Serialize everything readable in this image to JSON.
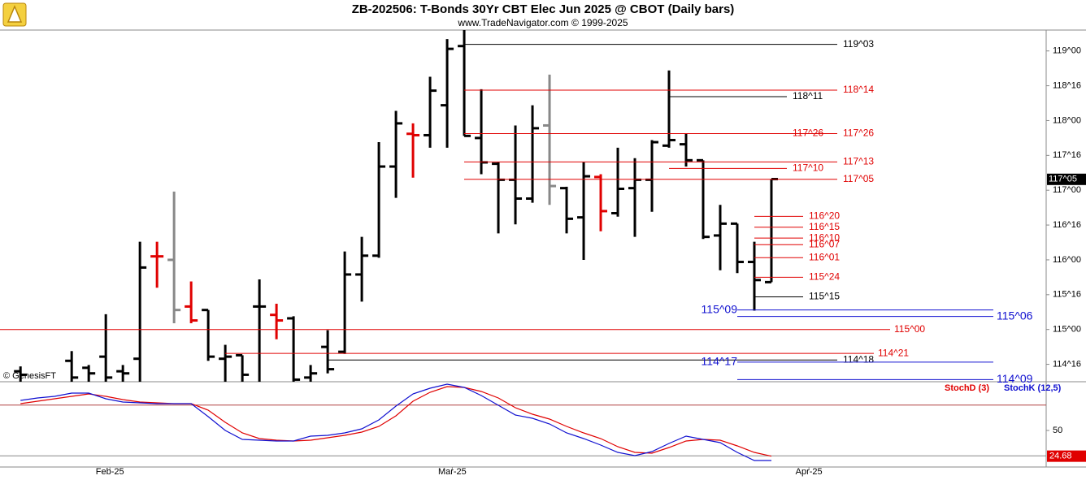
{
  "header": {
    "title": "ZB-202506:  T-Bonds 30Yr CBT Elec Jun 2025 @ CBOT  (Daily bars)",
    "subtitle": "www.TradeNavigator.com © 1999-2025",
    "credit": "© GenesisFT"
  },
  "chart_data": [
    {
      "type": "ohlc",
      "categories": [
        null,
        null,
        null,
        null,
        null,
        null,
        null,
        null,
        null,
        null,
        null,
        null,
        null,
        null,
        null,
        null,
        null,
        null,
        null,
        null,
        null,
        null,
        null,
        null,
        null,
        null,
        null,
        null,
        null,
        null,
        null,
        null,
        null,
        null,
        null,
        null,
        null,
        null,
        null,
        null,
        null,
        null,
        null,
        null,
        null
      ],
      "open": [
        114.4,
        null,
        null,
        114.55,
        114.45,
        114.61,
        114.4,
        114.58,
        116.05,
        116.0,
        115.33,
        115.28,
        114.58,
        114.63,
        115.33,
        115.21,
        115.16,
        114.31,
        114.75,
        114.68,
        115.79,
        116.06,
        117.34,
        117.81,
        117.79,
        118.22,
        119.07,
        117.75,
        117.38,
        117.15,
        116.88,
        117.93,
        117.03,
        116.61,
        117.19,
        116.67,
        117.03,
        117.15,
        117.64,
        117.66,
        117.43,
        116.35,
        116.52,
        115.97,
        115.68
      ],
      "high": [
        114.47,
        null,
        null,
        114.69,
        114.49,
        115.22,
        114.49,
        116.26,
        116.26,
        116.98,
        115.69,
        115.28,
        114.78,
        114.63,
        115.72,
        115.37,
        115.19,
        114.49,
        114.99,
        116.12,
        116.33,
        117.69,
        118.14,
        117.96,
        118.63,
        119.17,
        119.3,
        118.45,
        117.4,
        117.93,
        118.22,
        118.66,
        117.05,
        117.4,
        117.23,
        117.61,
        117.46,
        117.72,
        118.72,
        117.81,
        117.43,
        116.79,
        116.52,
        116.26,
        117.16
      ],
      "low": [
        114.25,
        null,
        null,
        114.25,
        114.25,
        114.25,
        114.25,
        114.25,
        115.6,
        115.09,
        115.09,
        114.55,
        114.25,
        114.25,
        114.25,
        114.86,
        114.25,
        114.25,
        114.37,
        114.65,
        115.4,
        116.03,
        116.89,
        117.18,
        117.61,
        117.61,
        117.78,
        117.23,
        116.38,
        116.51,
        116.82,
        116.79,
        116.38,
        116.0,
        116.41,
        116.62,
        116.33,
        116.69,
        117.61,
        117.34,
        116.3,
        115.85,
        115.81,
        115.27,
        115.68
      ],
      "close": [
        114.35,
        null,
        null,
        114.31,
        114.37,
        114.31,
        114.37,
        115.89,
        116.05,
        115.28,
        115.13,
        114.61,
        114.61,
        114.35,
        115.33,
        115.13,
        114.28,
        114.37,
        114.43,
        115.79,
        116.06,
        117.34,
        117.96,
        117.79,
        118.43,
        119.03,
        117.78,
        117.4,
        117.15,
        116.88,
        117.89,
        117.06,
        116.59,
        117.2,
        116.7,
        117.02,
        117.15,
        117.69,
        117.72,
        117.43,
        116.33,
        116.52,
        115.97,
        115.71,
        117.16
      ],
      "colors": [
        "#000000",
        null,
        null,
        "#000000",
        "#000000",
        "#000000",
        "#000000",
        "#000000",
        "#e00000",
        "#888888",
        "#e00000",
        "#000000",
        "#000000",
        "#000000",
        "#000000",
        "#e00000",
        "#000000",
        "#000000",
        "#000000",
        "#000000",
        "#000000",
        "#000000",
        "#000000",
        "#e00000",
        "#000000",
        "#000000",
        "#000000",
        "#000000",
        "#000000",
        "#000000",
        "#000000",
        "#888888",
        "#000000",
        "#000000",
        "#e00000",
        "#000000",
        "#000000",
        "#000000",
        "#000000",
        "#000000",
        "#000000",
        "#000000",
        "#000000",
        "#000000",
        "#000000"
      ],
      "xlim": [
        -1.2,
        60.1
      ],
      "ylim": [
        114.25,
        119.3
      ],
      "yticks": [
        {
          "value": 119,
          "label": "119^00"
        },
        {
          "value": 118.5,
          "label": "118^16"
        },
        {
          "value": 118,
          "label": "118^00"
        },
        {
          "value": 117.5,
          "label": "117^16"
        },
        {
          "value": 117,
          "label": "117^00"
        },
        {
          "value": 116.5,
          "label": "116^16"
        },
        {
          "value": 116,
          "label": "116^00"
        },
        {
          "value": 115.5,
          "label": "115^16"
        },
        {
          "value": 115,
          "label": "115^00"
        },
        {
          "value": 114.5,
          "label": "114^16"
        }
      ],
      "levels": [
        {
          "value": 119.09375,
          "label": "119^03",
          "color": "#000000"
        },
        {
          "value": 118.4375,
          "label": "118^14",
          "color": "#e00000"
        },
        {
          "value": 118.34375,
          "label": "118^11",
          "color": "#000000"
        },
        {
          "value": 117.8125,
          "label": "117^26",
          "color": "#e00000"
        },
        {
          "value": 117.8125,
          "label": "117^26",
          "color": "#e00000"
        },
        {
          "value": 117.40625,
          "label": "117^13",
          "color": "#e00000"
        },
        {
          "value": 117.3125,
          "label": "117^10",
          "color": "#e00000"
        },
        {
          "value": 117.15625,
          "label": "117^05",
          "color": "#e00000"
        },
        {
          "value": 116.625,
          "label": "116^20",
          "color": "#e00000"
        },
        {
          "value": 116.46875,
          "label": "116^15",
          "color": "#e00000"
        },
        {
          "value": 116.3125,
          "label": "116^10",
          "color": "#e00000"
        },
        {
          "value": 116.21875,
          "label": "116^07",
          "color": "#e00000"
        },
        {
          "value": 116.03125,
          "label": "116^01",
          "color": "#e00000"
        },
        {
          "value": 115.75,
          "label": "115^24",
          "color": "#e00000"
        },
        {
          "value": 115.46875,
          "label": "115^15",
          "color": "#000000"
        },
        {
          "value": 115.28125,
          "label": "115^09",
          "color": "#1010d0"
        },
        {
          "value": 115.1875,
          "label": "115^06",
          "color": "#1010d0"
        },
        {
          "value": 115.0,
          "label": "115^00",
          "color": "#e00000"
        },
        {
          "value": 114.65625,
          "label": "114^21",
          "color": "#e00000"
        },
        {
          "value": 114.5625,
          "label": "114^18",
          "color": "#000000"
        },
        {
          "value": 114.53125,
          "label": "114^17",
          "color": "#1010d0"
        },
        {
          "value": 114.28125,
          "label": "114^09",
          "color": "#1010d0"
        }
      ]
    },
    {
      "type": "line",
      "categories": [
        null,
        null,
        null,
        null,
        null,
        null,
        null,
        null,
        null,
        null,
        null,
        null,
        null,
        null,
        null,
        null,
        null,
        null,
        null,
        null,
        null,
        null,
        null,
        null,
        null,
        null,
        null,
        null,
        null,
        null,
        null,
        null,
        null,
        null,
        null,
        null,
        null,
        null,
        null,
        null,
        null,
        null,
        null,
        null,
        null
      ],
      "series": [
        {
          "name": "StochD (3)",
          "color": "#e00000",
          "values": [
            76.4,
            78.8,
            81.2,
            83.6,
            86,
            83.6,
            80.4,
            78,
            77.2,
            76.4,
            76.4,
            70,
            58,
            47.6,
            42,
            40.4,
            39.6,
            40.4,
            42.8,
            45.2,
            48.4,
            54,
            64.4,
            78.8,
            87.6,
            93.2,
            92.4,
            88.4,
            82,
            72.4,
            66,
            61.2,
            54,
            47.6,
            42,
            34,
            28.4,
            27.6,
            33.2,
            39.6,
            41.2,
            40.4,
            34.8,
            28.4,
            24.68
          ]
        },
        {
          "name": "StochK (12,5)",
          "color": "#1010d0",
          "values": [
            79.6,
            82,
            83.6,
            86.8,
            86.8,
            81.2,
            78,
            77.2,
            76.4,
            76.4,
            76.4,
            63.6,
            50,
            41.2,
            40.4,
            39.6,
            39.6,
            44.4,
            45.2,
            47.6,
            51.6,
            60.4,
            74,
            86,
            91.6,
            95.6,
            92.4,
            84.4,
            74.8,
            65.2,
            62,
            56.4,
            47.6,
            42,
            35.6,
            28.4,
            25.2,
            29.2,
            37.2,
            44.4,
            41.2,
            38,
            28.4,
            20.4,
            20.4
          ]
        }
      ],
      "xlim": [
        -1.2,
        60.1
      ],
      "xticks": [
        {
          "value": 5.24,
          "label": "Feb-25"
        },
        {
          "value": 25.3,
          "label": "Mar-25"
        },
        {
          "value": 46.2,
          "label": "Apr-25"
        }
      ],
      "ylim": [
        14,
        98
      ],
      "yticks": [
        50
      ],
      "reference_lines": [
        75,
        25
      ]
    }
  ]
}
